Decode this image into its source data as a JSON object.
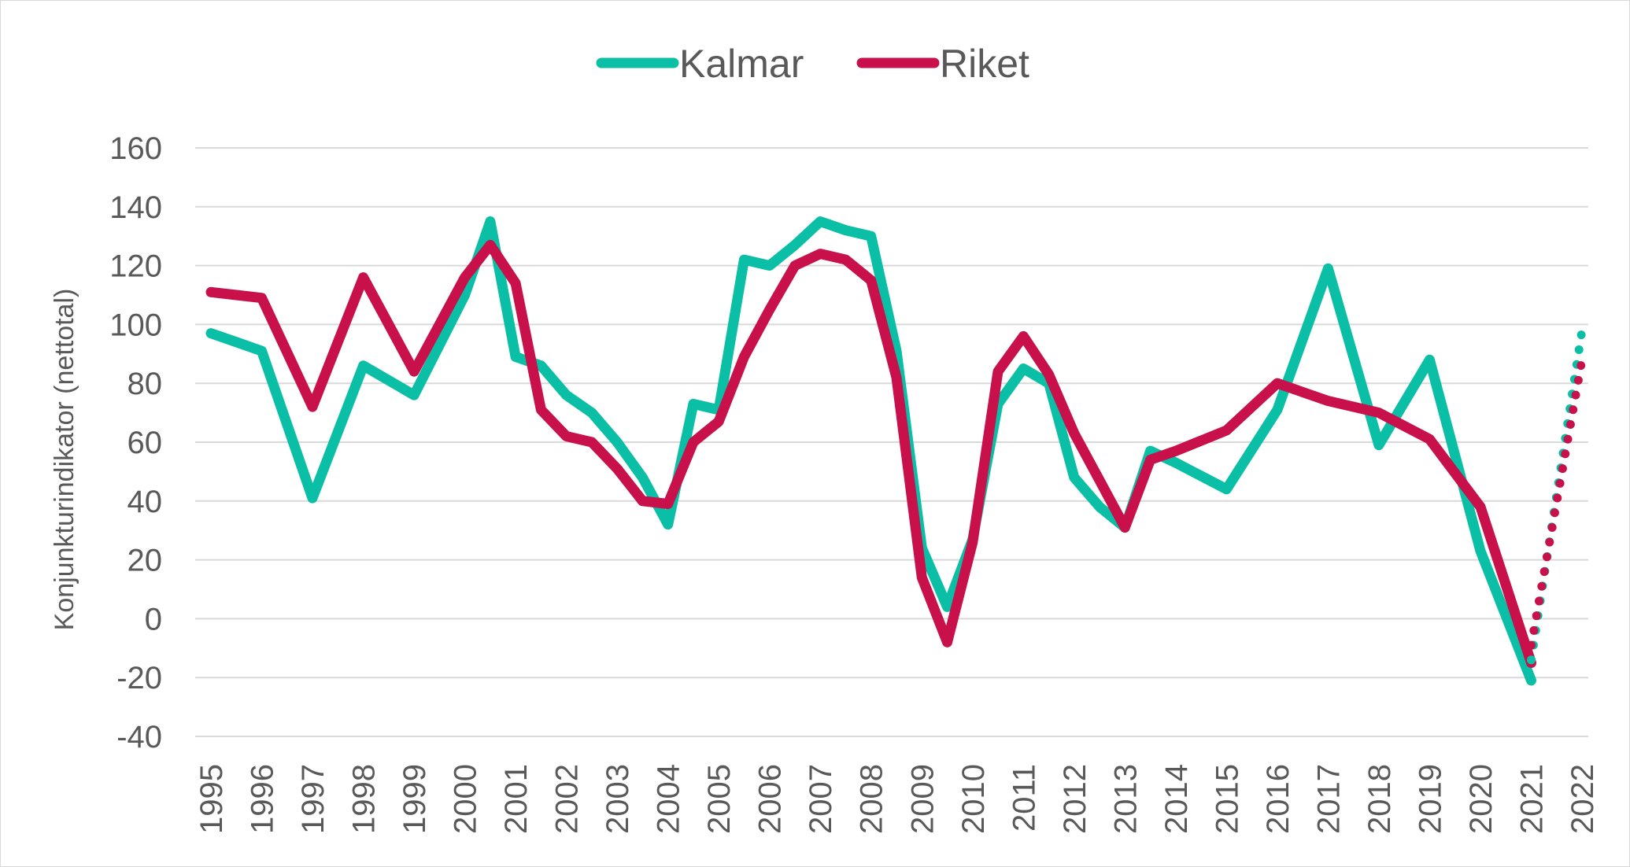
{
  "chart_data": {
    "type": "line",
    "ylabel": "Konjunkturindikator (nettotal)",
    "ylim": [
      -40,
      160
    ],
    "yticks": [
      160,
      140,
      120,
      100,
      80,
      60,
      40,
      20,
      0,
      -20,
      -40
    ],
    "xlim": [
      1995,
      2022
    ],
    "xticks": [
      "1995",
      "1996",
      "1997",
      "1998",
      "1999",
      "2000",
      "2001",
      "2002",
      "2003",
      "2004",
      "2005",
      "2006",
      "2007",
      "2008",
      "2009",
      "2010",
      "2011",
      "2012",
      "2013",
      "2014",
      "2015",
      "2016",
      "2017",
      "2018",
      "2019",
      "2020",
      "2021",
      "2022"
    ],
    "grid": "horizontal",
    "legend": "top-center",
    "series": [
      {
        "name": "Kalmar",
        "color": "#0ABFA5",
        "style": "solid",
        "points": [
          [
            1995.0,
            97
          ],
          [
            1995.5,
            94
          ],
          [
            1996.0,
            91
          ],
          [
            1997.0,
            41
          ],
          [
            1998.0,
            86
          ],
          [
            1999.0,
            76
          ],
          [
            2000.0,
            110
          ],
          [
            2000.5,
            135
          ],
          [
            2001.0,
            89
          ],
          [
            2001.5,
            86
          ],
          [
            2002.0,
            76
          ],
          [
            2002.5,
            70
          ],
          [
            2003.0,
            60
          ],
          [
            2003.5,
            48
          ],
          [
            2004.0,
            32
          ],
          [
            2004.5,
            73
          ],
          [
            2005.0,
            71
          ],
          [
            2005.5,
            122
          ],
          [
            2006.0,
            120
          ],
          [
            2006.5,
            127
          ],
          [
            2007.0,
            135
          ],
          [
            2007.5,
            132
          ],
          [
            2008.0,
            130
          ],
          [
            2008.5,
            91
          ],
          [
            2009.0,
            24
          ],
          [
            2009.5,
            4
          ],
          [
            2010.0,
            27
          ],
          [
            2010.5,
            73
          ],
          [
            2011.0,
            85
          ],
          [
            2011.5,
            80
          ],
          [
            2012.0,
            48
          ],
          [
            2012.5,
            38
          ],
          [
            2013.0,
            31
          ],
          [
            2013.5,
            57
          ],
          [
            2014.0,
            53
          ],
          [
            2015.0,
            44
          ],
          [
            2016.0,
            71
          ],
          [
            2017.0,
            119
          ],
          [
            2018.0,
            59
          ],
          [
            2019.0,
            88
          ],
          [
            2020.0,
            23
          ],
          [
            2021.0,
            -21
          ]
        ]
      },
      {
        "name": "Riket",
        "color": "#C8104B",
        "style": "solid",
        "points": [
          [
            1995.0,
            111
          ],
          [
            1995.5,
            110
          ],
          [
            1996.0,
            109
          ],
          [
            1997.0,
            72
          ],
          [
            1998.0,
            116
          ],
          [
            1999.0,
            84
          ],
          [
            2000.0,
            116
          ],
          [
            2000.5,
            127
          ],
          [
            2001.0,
            114
          ],
          [
            2001.5,
            71
          ],
          [
            2002.0,
            62
          ],
          [
            2002.5,
            60
          ],
          [
            2003.0,
            51
          ],
          [
            2003.5,
            40
          ],
          [
            2004.0,
            39
          ],
          [
            2004.5,
            60
          ],
          [
            2005.0,
            67
          ],
          [
            2005.5,
            89
          ],
          [
            2006.0,
            105
          ],
          [
            2006.5,
            120
          ],
          [
            2007.0,
            124
          ],
          [
            2007.5,
            122
          ],
          [
            2008.0,
            115
          ],
          [
            2008.5,
            82
          ],
          [
            2009.0,
            14
          ],
          [
            2009.5,
            -8
          ],
          [
            2010.0,
            26
          ],
          [
            2010.5,
            84
          ],
          [
            2011.0,
            96
          ],
          [
            2011.5,
            83
          ],
          [
            2012.0,
            63
          ],
          [
            2012.5,
            47
          ],
          [
            2013.0,
            31
          ],
          [
            2013.5,
            54
          ],
          [
            2014.0,
            57
          ],
          [
            2015.0,
            64
          ],
          [
            2016.0,
            80
          ],
          [
            2017.0,
            74
          ],
          [
            2018.0,
            70
          ],
          [
            2019.0,
            61
          ],
          [
            2020.0,
            38
          ],
          [
            2021.0,
            -15
          ]
        ]
      },
      {
        "name": "Kalmar",
        "color": "#0ABFA5",
        "style": "dotted",
        "points": [
          [
            2021.0,
            -14
          ],
          [
            2022.0,
            98
          ]
        ]
      },
      {
        "name": "Riket",
        "color": "#C8104B",
        "style": "dotted",
        "points": [
          [
            2021.0,
            -9
          ],
          [
            2022.0,
            88
          ]
        ]
      }
    ]
  }
}
